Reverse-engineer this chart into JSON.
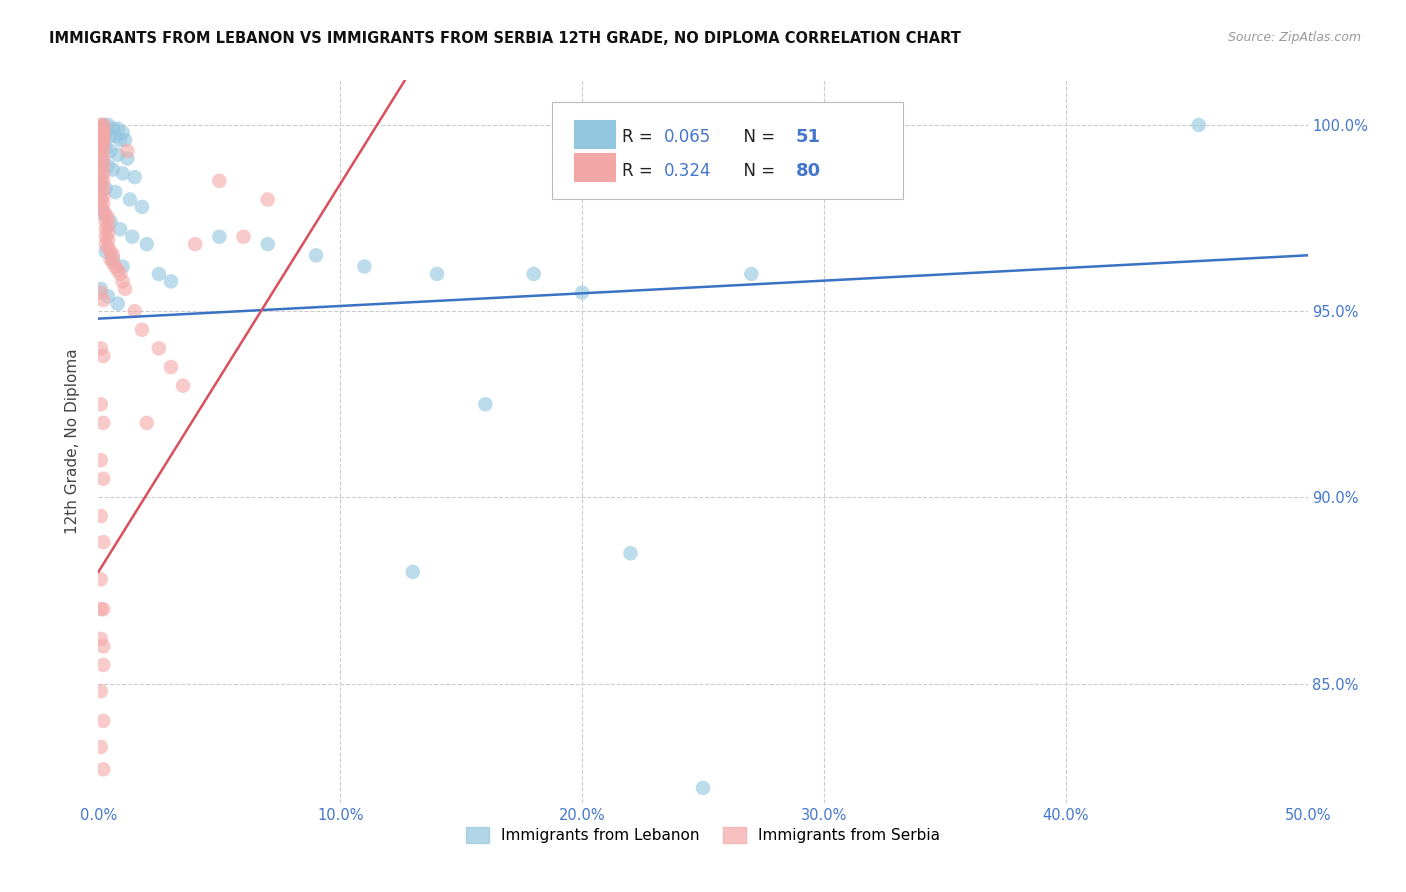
{
  "title": "IMMIGRANTS FROM LEBANON VS IMMIGRANTS FROM SERBIA 12TH GRADE, NO DIPLOMA CORRELATION CHART",
  "source": "Source: ZipAtlas.com",
  "ylabel": "12th Grade, No Diploma",
  "lebanon_color": "#92c5de",
  "serbia_color": "#f4a7a7",
  "lebanon_R": 0.065,
  "lebanon_N": 51,
  "serbia_R": 0.324,
  "serbia_N": 80,
  "trend_lebanon_color": "#3a72c4",
  "trend_serbia_color": "#d94f5c",
  "legend_label_lebanon": "Immigrants from Lebanon",
  "legend_label_serbia": "Immigrants from Serbia",
  "xlim": [
    0.0,
    0.5
  ],
  "ylim": [
    0.818,
    1.012
  ],
  "x_ticks": [
    0.0,
    0.1,
    0.2,
    0.3,
    0.4,
    0.5
  ],
  "x_tick_labels": [
    "0.0%",
    "10.0%",
    "20.0%",
    "30.0%",
    "40.0%",
    "50.0%"
  ],
  "y_ticks": [
    0.85,
    0.9,
    0.95,
    1.0
  ],
  "y_tick_labels": [
    "85.0%",
    "90.0%",
    "95.0%",
    "100.0%"
  ],
  "tick_color": "#4477cc",
  "legend_R_N_color": "#4477cc",
  "legend_R_label_color": "#222222",
  "lebanon_x": [
    0.002,
    0.004,
    0.006,
    0.008,
    0.01,
    0.003,
    0.005,
    0.007,
    0.009,
    0.011,
    0.001,
    0.003,
    0.005,
    0.008,
    0.012,
    0.002,
    0.004,
    0.006,
    0.01,
    0.015,
    0.001,
    0.003,
    0.007,
    0.013,
    0.018,
    0.002,
    0.005,
    0.009,
    0.014,
    0.02,
    0.003,
    0.006,
    0.01,
    0.025,
    0.03,
    0.001,
    0.004,
    0.008,
    0.14,
    0.16,
    0.18,
    0.2,
    0.22,
    0.27,
    0.455,
    0.05,
    0.07,
    0.09,
    0.11,
    0.13,
    0.25
  ],
  "lebanon_y": [
    1.0,
    1.0,
    0.999,
    0.999,
    0.998,
    0.998,
    0.997,
    0.997,
    0.996,
    0.996,
    0.995,
    0.994,
    0.993,
    0.992,
    0.991,
    0.99,
    0.989,
    0.988,
    0.987,
    0.986,
    0.985,
    0.983,
    0.982,
    0.98,
    0.978,
    0.976,
    0.974,
    0.972,
    0.97,
    0.968,
    0.966,
    0.964,
    0.962,
    0.96,
    0.958,
    0.956,
    0.954,
    0.952,
    0.96,
    0.925,
    0.96,
    0.955,
    0.885,
    0.96,
    1.0,
    0.97,
    0.968,
    0.965,
    0.962,
    0.88,
    0.822
  ],
  "serbia_x": [
    0.001,
    0.002,
    0.001,
    0.002,
    0.001,
    0.002,
    0.001,
    0.002,
    0.001,
    0.002,
    0.001,
    0.002,
    0.001,
    0.002,
    0.001,
    0.002,
    0.001,
    0.002,
    0.001,
    0.002,
    0.001,
    0.002,
    0.001,
    0.002,
    0.001,
    0.002,
    0.001,
    0.002,
    0.001,
    0.002,
    0.003,
    0.004,
    0.003,
    0.004,
    0.003,
    0.004,
    0.003,
    0.004,
    0.003,
    0.004,
    0.005,
    0.006,
    0.005,
    0.006,
    0.007,
    0.008,
    0.009,
    0.01,
    0.011,
    0.012,
    0.015,
    0.018,
    0.02,
    0.025,
    0.03,
    0.035,
    0.04,
    0.05,
    0.06,
    0.07,
    0.001,
    0.002,
    0.001,
    0.002,
    0.001,
    0.002,
    0.001,
    0.002,
    0.001,
    0.002,
    0.001,
    0.002,
    0.001,
    0.002,
    0.001,
    0.002,
    0.001,
    0.002,
    0.001,
    0.002
  ],
  "serbia_y": [
    1.0,
    1.0,
    0.999,
    0.999,
    0.998,
    0.998,
    0.997,
    0.997,
    0.996,
    0.996,
    0.995,
    0.995,
    0.994,
    0.993,
    0.992,
    0.991,
    0.99,
    0.989,
    0.988,
    0.987,
    0.986,
    0.985,
    0.984,
    0.983,
    0.982,
    0.981,
    0.98,
    0.979,
    0.978,
    0.977,
    0.976,
    0.975,
    0.974,
    0.973,
    0.972,
    0.971,
    0.97,
    0.969,
    0.968,
    0.967,
    0.966,
    0.965,
    0.964,
    0.963,
    0.962,
    0.961,
    0.96,
    0.958,
    0.956,
    0.993,
    0.95,
    0.945,
    0.92,
    0.94,
    0.935,
    0.93,
    0.968,
    0.985,
    0.97,
    0.98,
    0.955,
    0.953,
    0.94,
    0.938,
    0.925,
    0.92,
    0.91,
    0.905,
    0.895,
    0.888,
    0.878,
    0.87,
    0.862,
    0.855,
    0.848,
    0.84,
    0.833,
    0.827,
    0.87,
    0.86
  ]
}
